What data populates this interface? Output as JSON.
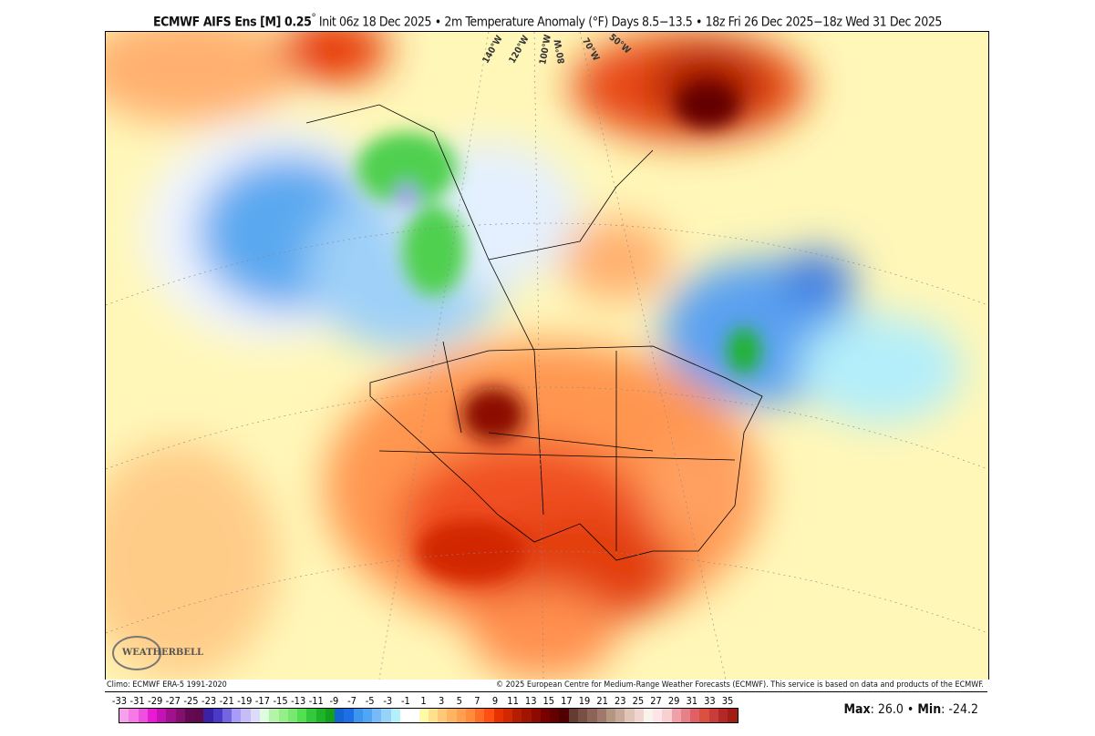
{
  "title": {
    "model": "ECMWF AIFS Ens [M] 0.25",
    "degree": "°",
    "rest": " Init 06z 18 Dec 2025 • 2m Temperature Anomaly (°F)   Days 8.5−13.5 • 18z Fri 26 Dec 2025−18z Wed 31 Dec 2025"
  },
  "map": {
    "region": "North America",
    "longitude_labels": [
      "140°W",
      "120°W",
      "100°W",
      "80°W",
      "70°W",
      "50°W"
    ],
    "logo_text": "WEATHERBELL"
  },
  "credits": {
    "climo": "Climo: ECMWF ERA-5 1991-2020",
    "copyright": "© 2025 European Centre for Medium-Range Weather Forecasts (ECMWF). This service is based on data and products of the ECMWF."
  },
  "colorbar": {
    "tick_labels": [
      "-33",
      "-31",
      "-29",
      "-27",
      "-25",
      "-23",
      "-21",
      "-19",
      "-17",
      "-15",
      "-13",
      "-11",
      "-9",
      "-7",
      "-5",
      "-3",
      "-1",
      "1",
      "3",
      "5",
      "7",
      "9",
      "11",
      "13",
      "15",
      "17",
      "19",
      "21",
      "23",
      "25",
      "27",
      "29",
      "31",
      "33",
      "35"
    ],
    "colors": [
      "#f7a1eb",
      "#f57ae6",
      "#ee50de",
      "#e81ad4",
      "#c412b3",
      "#a1108f",
      "#83106f",
      "#650a52",
      "#600a4e",
      "#3a21a6",
      "#4a3bc4",
      "#7466e0",
      "#a79cf6",
      "#c6bdf8",
      "#dcdcf8",
      "#e0fce0",
      "#b4f4a8",
      "#96ee88",
      "#78e870",
      "#50e050",
      "#34c83c",
      "#1eb42a",
      "#14a01e",
      "#1464d2",
      "#1e6ee6",
      "#3c96f0",
      "#50a5f5",
      "#78b9f8",
      "#96d2fa",
      "#b4f0fa",
      "#ffffff",
      "#ffffff",
      "#fffaaa",
      "#ffe08c",
      "#ffc878",
      "#ffb464",
      "#ffa050",
      "#ff8c3c",
      "#ff6e28",
      "#ff5014",
      "#e63200",
      "#d22800",
      "#b41e00",
      "#a01400",
      "#8c0a00",
      "#780000",
      "#640000",
      "#500000",
      "#643c32",
      "#785046",
      "#8c6458",
      "#a0786e",
      "#b49682",
      "#c8a898",
      "#e0c4b8",
      "#f0d4d0",
      "#f8f4ec",
      "#fce4e8",
      "#f8d0d0",
      "#f0a0a8",
      "#e88088",
      "#e06068",
      "#dc5040",
      "#c83c3c",
      "#b42828",
      "#a01e14"
    ]
  },
  "stats": {
    "max_label": "Max",
    "max": ": 26.0 • ",
    "min_label": "Min",
    "min": ": -24.2"
  }
}
